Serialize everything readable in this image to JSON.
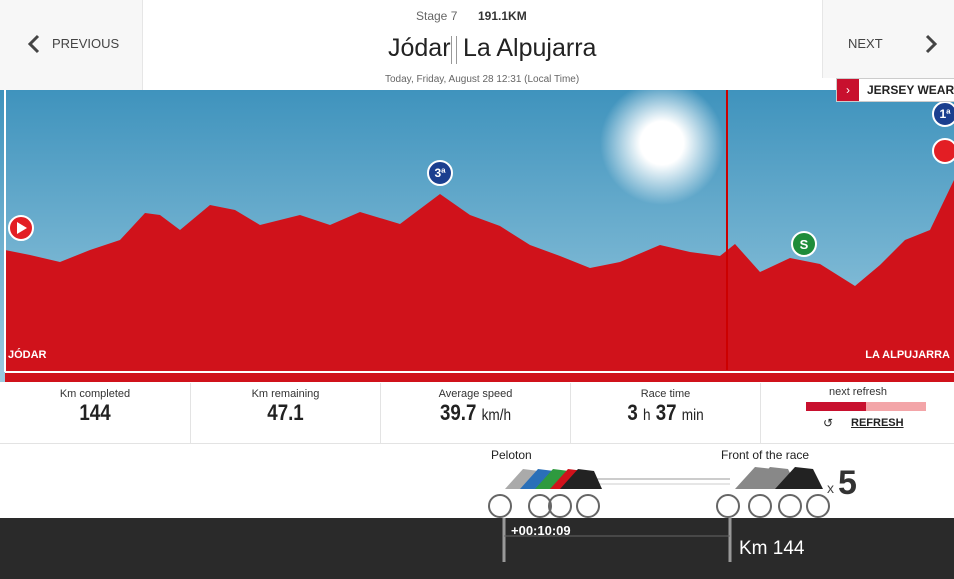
{
  "nav": {
    "previous": "PREVIOUS",
    "next": "NEXT"
  },
  "header": {
    "stage": "Stage 7",
    "distance": "191.1KM",
    "start": "Jódar",
    "finish": "La Alpujarra",
    "date": "Today, Friday, August 28 12:31 (Local Time)"
  },
  "jersey_button": "JERSEY WEARERS",
  "profile": {
    "start_label": "JÓDAR",
    "finish_label": "LA ALPUJARRA",
    "climb_3": "3ª",
    "climb_1": "1ª",
    "sprint": "S"
  },
  "stats": [
    {
      "label": "Km completed",
      "value": "144"
    },
    {
      "label": "Km remaining",
      "value": "47.1"
    },
    {
      "label": "Average speed",
      "value": "39.7",
      "unit": "km/h"
    },
    {
      "label": "Race time",
      "hours": "3",
      "hours_unit": "h",
      "minutes": "37",
      "minutes_unit": "min"
    }
  ],
  "refresh": {
    "label": "next refresh",
    "button": "REFRESH"
  },
  "race": {
    "peloton": "Peloton",
    "front": "Front of the race",
    "multiplier": "x",
    "front_count": "5",
    "gap": "+00:10:09",
    "km": "Km 144"
  }
}
